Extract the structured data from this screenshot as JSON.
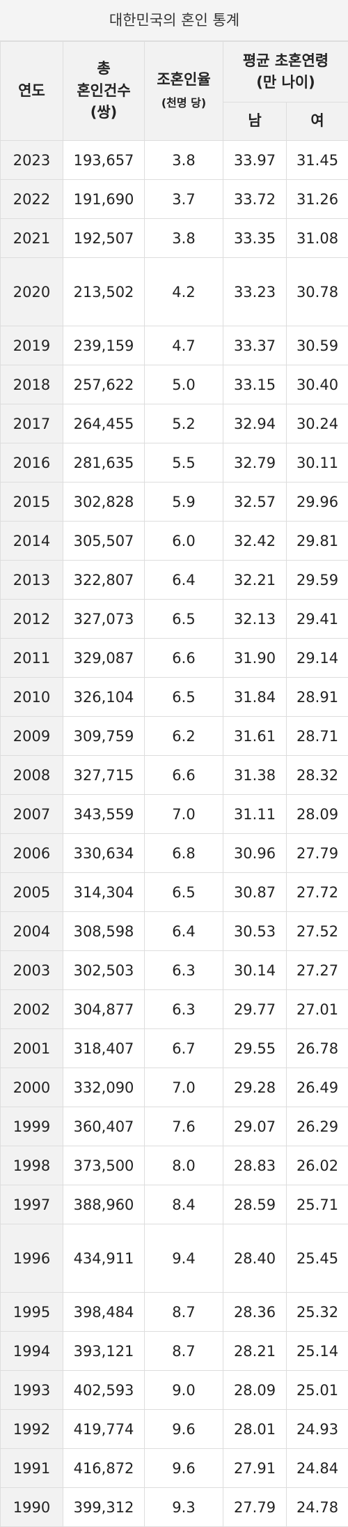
{
  "table": {
    "caption": "대한민국의 혼인 통계",
    "header": {
      "year": "연도",
      "total_1": "총",
      "total_2": "혼인건수",
      "total_3": "(쌍)",
      "rate_1": "조혼인율",
      "rate_2": "(천명 당)",
      "age_1": "평균 초혼연령",
      "age_2": "(만 나이)",
      "male": "남",
      "female": "여"
    },
    "rows": [
      [
        "2023",
        "193,657",
        "3.8",
        "33.97",
        "31.45"
      ],
      [
        "2022",
        "191,690",
        "3.7",
        "33.72",
        "31.26"
      ],
      [
        "2021",
        "192,507",
        "3.8",
        "33.35",
        "31.08"
      ],
      [
        "2020",
        "213,502",
        "4.2",
        "33.23",
        "30.78"
      ],
      [
        "2019",
        "239,159",
        "4.7",
        "33.37",
        "30.59"
      ],
      [
        "2018",
        "257,622",
        "5.0",
        "33.15",
        "30.40"
      ],
      [
        "2017",
        "264,455",
        "5.2",
        "32.94",
        "30.24"
      ],
      [
        "2016",
        "281,635",
        "5.5",
        "32.79",
        "30.11"
      ],
      [
        "2015",
        "302,828",
        "5.9",
        "32.57",
        "29.96"
      ],
      [
        "2014",
        "305,507",
        "6.0",
        "32.42",
        "29.81"
      ],
      [
        "2013",
        "322,807",
        "6.4",
        "32.21",
        "29.59"
      ],
      [
        "2012",
        "327,073",
        "6.5",
        "32.13",
        "29.41"
      ],
      [
        "2011",
        "329,087",
        "6.6",
        "31.90",
        "29.14"
      ],
      [
        "2010",
        "326,104",
        "6.5",
        "31.84",
        "28.91"
      ],
      [
        "2009",
        "309,759",
        "6.2",
        "31.61",
        "28.71"
      ],
      [
        "2008",
        "327,715",
        "6.6",
        "31.38",
        "28.32"
      ],
      [
        "2007",
        "343,559",
        "7.0",
        "31.11",
        "28.09"
      ],
      [
        "2006",
        "330,634",
        "6.8",
        "30.96",
        "27.79"
      ],
      [
        "2005",
        "314,304",
        "6.5",
        "30.87",
        "27.72"
      ],
      [
        "2004",
        "308,598",
        "6.4",
        "30.53",
        "27.52"
      ],
      [
        "2003",
        "302,503",
        "6.3",
        "30.14",
        "27.27"
      ],
      [
        "2002",
        "304,877",
        "6.3",
        "29.77",
        "27.01"
      ],
      [
        "2001",
        "318,407",
        "6.7",
        "29.55",
        "26.78"
      ],
      [
        "2000",
        "332,090",
        "7.0",
        "29.28",
        "26.49"
      ],
      [
        "1999",
        "360,407",
        "7.6",
        "29.07",
        "26.29"
      ],
      [
        "1998",
        "373,500",
        "8.0",
        "28.83",
        "26.02"
      ],
      [
        "1997",
        "388,960",
        "8.4",
        "28.59",
        "25.71"
      ],
      [
        "1996",
        "434,911",
        "9.4",
        "28.40",
        "25.45"
      ],
      [
        "1995",
        "398,484",
        "8.7",
        "28.36",
        "25.32"
      ],
      [
        "1994",
        "393,121",
        "8.7",
        "28.21",
        "25.14"
      ],
      [
        "1993",
        "402,593",
        "9.0",
        "28.09",
        "25.01"
      ],
      [
        "1992",
        "419,774",
        "9.6",
        "28.01",
        "24.93"
      ],
      [
        "1991",
        "416,872",
        "9.6",
        "27.91",
        "24.84"
      ],
      [
        "1990",
        "399,312",
        "9.3",
        "27.79",
        "24.78"
      ]
    ]
  }
}
